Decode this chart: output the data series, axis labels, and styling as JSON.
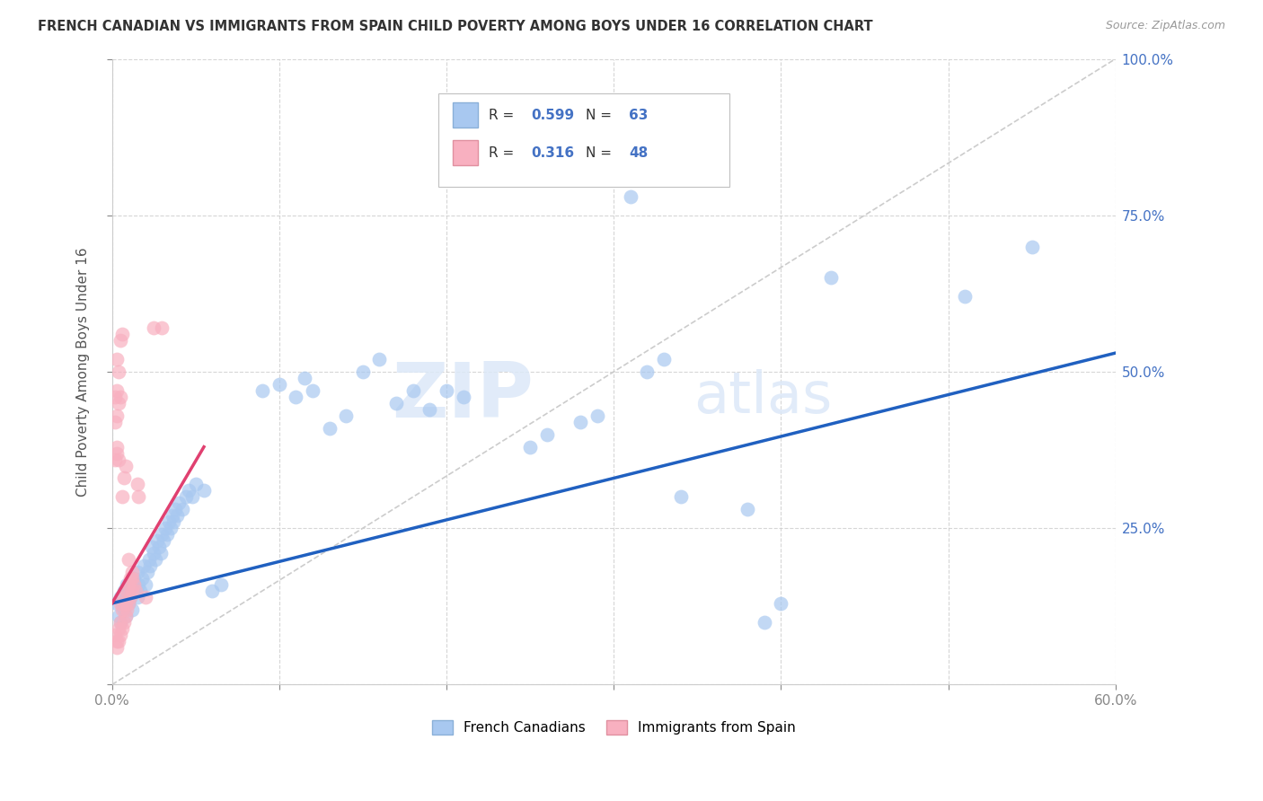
{
  "title": "FRENCH CANADIAN VS IMMIGRANTS FROM SPAIN CHILD POVERTY AMONG BOYS UNDER 16 CORRELATION CHART",
  "source": "Source: ZipAtlas.com",
  "ylabel": "Child Poverty Among Boys Under 16",
  "xlim": [
    0.0,
    0.6
  ],
  "ylim": [
    0.0,
    1.0
  ],
  "blue_color": "#a8c8f0",
  "pink_color": "#f8b0c0",
  "blue_line_color": "#2060c0",
  "pink_line_color": "#e04070",
  "diagonal_color": "#d0d0d0",
  "watermark_zip": "ZIP",
  "watermark_atlas": "atlas",
  "blue_points": [
    [
      0.003,
      0.13
    ],
    [
      0.004,
      0.11
    ],
    [
      0.005,
      0.1
    ],
    [
      0.005,
      0.14
    ],
    [
      0.006,
      0.13
    ],
    [
      0.007,
      0.12
    ],
    [
      0.007,
      0.15
    ],
    [
      0.008,
      0.14
    ],
    [
      0.008,
      0.11
    ],
    [
      0.009,
      0.16
    ],
    [
      0.01,
      0.13
    ],
    [
      0.01,
      0.15
    ],
    [
      0.011,
      0.14
    ],
    [
      0.012,
      0.12
    ],
    [
      0.012,
      0.16
    ],
    [
      0.013,
      0.17
    ],
    [
      0.014,
      0.15
    ],
    [
      0.015,
      0.18
    ],
    [
      0.015,
      0.14
    ],
    [
      0.016,
      0.16
    ],
    [
      0.017,
      0.15
    ],
    [
      0.018,
      0.17
    ],
    [
      0.019,
      0.19
    ],
    [
      0.02,
      0.16
    ],
    [
      0.021,
      0.18
    ],
    [
      0.022,
      0.2
    ],
    [
      0.023,
      0.19
    ],
    [
      0.024,
      0.22
    ],
    [
      0.025,
      0.21
    ],
    [
      0.026,
      0.2
    ],
    [
      0.027,
      0.23
    ],
    [
      0.028,
      0.22
    ],
    [
      0.029,
      0.21
    ],
    [
      0.03,
      0.24
    ],
    [
      0.031,
      0.23
    ],
    [
      0.032,
      0.25
    ],
    [
      0.033,
      0.24
    ],
    [
      0.034,
      0.26
    ],
    [
      0.035,
      0.25
    ],
    [
      0.036,
      0.27
    ],
    [
      0.037,
      0.26
    ],
    [
      0.038,
      0.28
    ],
    [
      0.039,
      0.27
    ],
    [
      0.04,
      0.29
    ],
    [
      0.042,
      0.28
    ],
    [
      0.044,
      0.3
    ],
    [
      0.046,
      0.31
    ],
    [
      0.048,
      0.3
    ],
    [
      0.05,
      0.32
    ],
    [
      0.055,
      0.31
    ],
    [
      0.06,
      0.15
    ],
    [
      0.065,
      0.16
    ],
    [
      0.09,
      0.47
    ],
    [
      0.1,
      0.48
    ],
    [
      0.11,
      0.46
    ],
    [
      0.115,
      0.49
    ],
    [
      0.12,
      0.47
    ],
    [
      0.13,
      0.41
    ],
    [
      0.14,
      0.43
    ],
    [
      0.15,
      0.5
    ],
    [
      0.16,
      0.52
    ],
    [
      0.2,
      0.47
    ],
    [
      0.21,
      0.46
    ],
    [
      0.31,
      0.78
    ],
    [
      0.32,
      0.5
    ],
    [
      0.33,
      0.52
    ],
    [
      0.34,
      0.3
    ],
    [
      0.38,
      0.28
    ],
    [
      0.39,
      0.1
    ],
    [
      0.4,
      0.13
    ],
    [
      0.43,
      0.65
    ],
    [
      0.51,
      0.62
    ],
    [
      0.55,
      0.7
    ],
    [
      0.28,
      0.42
    ],
    [
      0.29,
      0.43
    ],
    [
      0.26,
      0.4
    ],
    [
      0.25,
      0.38
    ],
    [
      0.17,
      0.45
    ],
    [
      0.18,
      0.47
    ],
    [
      0.19,
      0.44
    ]
  ],
  "pink_points": [
    [
      0.002,
      0.08
    ],
    [
      0.003,
      0.07
    ],
    [
      0.003,
      0.06
    ],
    [
      0.004,
      0.07
    ],
    [
      0.004,
      0.09
    ],
    [
      0.005,
      0.08
    ],
    [
      0.005,
      0.1
    ],
    [
      0.005,
      0.13
    ],
    [
      0.006,
      0.09
    ],
    [
      0.006,
      0.12
    ],
    [
      0.007,
      0.1
    ],
    [
      0.007,
      0.14
    ],
    [
      0.008,
      0.11
    ],
    [
      0.008,
      0.13
    ],
    [
      0.009,
      0.12
    ],
    [
      0.009,
      0.15
    ],
    [
      0.01,
      0.13
    ],
    [
      0.01,
      0.16
    ],
    [
      0.011,
      0.14
    ],
    [
      0.011,
      0.17
    ],
    [
      0.012,
      0.15
    ],
    [
      0.012,
      0.17
    ],
    [
      0.013,
      0.16
    ],
    [
      0.014,
      0.15
    ],
    [
      0.015,
      0.32
    ],
    [
      0.016,
      0.3
    ],
    [
      0.003,
      0.47
    ],
    [
      0.003,
      0.43
    ],
    [
      0.004,
      0.45
    ],
    [
      0.005,
      0.46
    ],
    [
      0.004,
      0.5
    ],
    [
      0.003,
      0.52
    ],
    [
      0.002,
      0.46
    ],
    [
      0.002,
      0.42
    ],
    [
      0.005,
      0.55
    ],
    [
      0.006,
      0.56
    ],
    [
      0.006,
      0.3
    ],
    [
      0.007,
      0.33
    ],
    [
      0.008,
      0.35
    ],
    [
      0.025,
      0.57
    ],
    [
      0.03,
      0.57
    ],
    [
      0.002,
      0.36
    ],
    [
      0.003,
      0.37
    ],
    [
      0.003,
      0.38
    ],
    [
      0.004,
      0.36
    ],
    [
      0.01,
      0.2
    ],
    [
      0.012,
      0.18
    ],
    [
      0.02,
      0.14
    ]
  ],
  "blue_regression": [
    0.0,
    0.6,
    0.13,
    0.53
  ],
  "pink_regression": [
    0.0,
    0.055,
    0.13,
    0.38
  ]
}
